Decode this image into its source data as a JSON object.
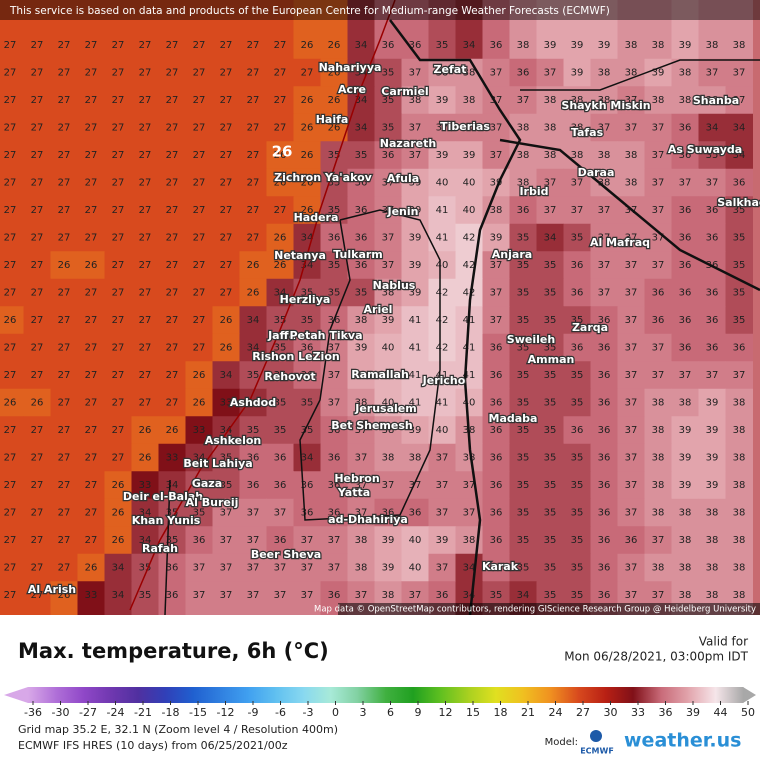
{
  "header": {
    "notice": "This service is based on data and products of the European Centre for Medium-range Weather Forecasts (ECMWF)",
    "attribution": "Map data © OpenStreetMap contributors, rendering GIScience Research Group @ Heidelberg University"
  },
  "map": {
    "highlight": "26",
    "places": [
      "Zefat",
      "Nahariyya",
      "Acre",
      "Carmiel",
      "Haifa",
      "Tiberias",
      "Nazareth",
      "Zichron Ya'akov",
      "Afula",
      "Hadera",
      "Jenin",
      "Irbid",
      "Netanya",
      "Tulkarm",
      "Nablus",
      "Herzliya",
      "Ariel",
      "Jaffa",
      "Petah Tikva",
      "Rishon LeZion",
      "Rehovot",
      "Ramallah",
      "Jericho",
      "Ashdod",
      "Jerusalem",
      "Bet Shemesh",
      "Ashkelon",
      "Beit Lahiya",
      "Gaza",
      "Deir el-Balah",
      "Al Bureij",
      "Khan Yunis",
      "Rafah",
      "Hebron",
      "Yatta",
      "ad-Dhahiriya",
      "Beer Sheva",
      "Al Arish",
      "Karak",
      "Madaba",
      "Amman",
      "Sweileh",
      "Zarqa",
      "Anjara",
      "Al Mafraq",
      "Daraa",
      "As Suwayda",
      "Shanba",
      "Tafas",
      "Shaykh Miskin",
      "Salkhad"
    ],
    "grid": [
      [
        27,
        27,
        27,
        27,
        27,
        27,
        27,
        27,
        27,
        27,
        27,
        26,
        26,
        34,
        36,
        36,
        35,
        34,
        36,
        38,
        39,
        39,
        39,
        38,
        38,
        39,
        38,
        38
      ],
      [
        27,
        27,
        27,
        27,
        27,
        27,
        27,
        27,
        27,
        27,
        27,
        27,
        26,
        34,
        35,
        37,
        38,
        38,
        37,
        36,
        37,
        39,
        38,
        38,
        39,
        38,
        37,
        37
      ],
      [
        27,
        27,
        27,
        27,
        27,
        27,
        27,
        27,
        27,
        27,
        27,
        26,
        26,
        34,
        35,
        38,
        39,
        38,
        37,
        37,
        38,
        38,
        38,
        37,
        38,
        38,
        38,
        37
      ],
      [
        27,
        27,
        27,
        27,
        27,
        27,
        27,
        27,
        27,
        27,
        27,
        26,
        26,
        34,
        35,
        37,
        37,
        37,
        37,
        38,
        38,
        38,
        37,
        37,
        37,
        36,
        34,
        34
      ],
      [
        27,
        27,
        27,
        27,
        27,
        27,
        27,
        27,
        27,
        27,
        26,
        26,
        35,
        35,
        36,
        37,
        39,
        39,
        37,
        38,
        38,
        38,
        38,
        38,
        37,
        36,
        35,
        34
      ],
      [
        27,
        27,
        27,
        27,
        27,
        27,
        27,
        27,
        27,
        27,
        26,
        26,
        35,
        36,
        37,
        39,
        40,
        40,
        39,
        38,
        37,
        37,
        38,
        38,
        37,
        37,
        37,
        36
      ],
      [
        27,
        27,
        27,
        27,
        27,
        27,
        27,
        27,
        27,
        27,
        27,
        26,
        35,
        36,
        37,
        39,
        41,
        40,
        38,
        36,
        37,
        37,
        37,
        37,
        37,
        36,
        36,
        35
      ],
      [
        27,
        27,
        27,
        27,
        27,
        27,
        27,
        27,
        27,
        27,
        26,
        34,
        36,
        36,
        37,
        39,
        41,
        42,
        39,
        35,
        34,
        35,
        37,
        37,
        37,
        36,
        36,
        35
      ],
      [
        27,
        27,
        26,
        26,
        27,
        27,
        27,
        27,
        27,
        26,
        26,
        34,
        35,
        36,
        37,
        39,
        40,
        42,
        37,
        35,
        35,
        36,
        37,
        37,
        37,
        36,
        36,
        35
      ],
      [
        27,
        27,
        27,
        27,
        27,
        27,
        27,
        27,
        27,
        26,
        34,
        35,
        35,
        35,
        38,
        39,
        42,
        42,
        37,
        35,
        35,
        36,
        37,
        37,
        36,
        36,
        36,
        35
      ],
      [
        26,
        27,
        27,
        27,
        27,
        27,
        27,
        27,
        26,
        34,
        35,
        35,
        36,
        38,
        39,
        41,
        42,
        41,
        37,
        35,
        35,
        35,
        36,
        37,
        36,
        36,
        36,
        35
      ],
      [
        27,
        27,
        27,
        27,
        27,
        27,
        27,
        27,
        26,
        34,
        35,
        36,
        37,
        39,
        40,
        41,
        42,
        41,
        36,
        35,
        35,
        36,
        36,
        37,
        37,
        36,
        36,
        36
      ],
      [
        27,
        27,
        27,
        27,
        27,
        27,
        27,
        26,
        34,
        35,
        35,
        36,
        37,
        39,
        40,
        41,
        41,
        41,
        36,
        35,
        35,
        35,
        36,
        37,
        37,
        37,
        37,
        37
      ],
      [
        26,
        26,
        27,
        27,
        27,
        27,
        27,
        26,
        33,
        34,
        35,
        35,
        37,
        38,
        40,
        41,
        41,
        40,
        36,
        35,
        35,
        35,
        36,
        37,
        38,
        38,
        39,
        38
      ],
      [
        27,
        27,
        27,
        27,
        27,
        26,
        26,
        33,
        34,
        35,
        35,
        35,
        36,
        37,
        38,
        39,
        40,
        38,
        36,
        35,
        35,
        36,
        36,
        37,
        38,
        39,
        39,
        38
      ],
      [
        27,
        27,
        27,
        27,
        27,
        26,
        33,
        34,
        35,
        36,
        36,
        34,
        36,
        37,
        38,
        38,
        37,
        38,
        36,
        35,
        35,
        35,
        36,
        37,
        38,
        39,
        39,
        38
      ],
      [
        27,
        27,
        27,
        27,
        26,
        33,
        34,
        35,
        35,
        36,
        36,
        36,
        36,
        37,
        37,
        37,
        37,
        37,
        36,
        35,
        35,
        35,
        36,
        37,
        38,
        39,
        39,
        38
      ],
      [
        27,
        27,
        27,
        27,
        26,
        34,
        35,
        35,
        37,
        37,
        37,
        36,
        36,
        37,
        36,
        36,
        37,
        37,
        36,
        35,
        35,
        35,
        36,
        37,
        38,
        38,
        38,
        38
      ],
      [
        27,
        27,
        27,
        27,
        26,
        34,
        35,
        36,
        37,
        37,
        36,
        37,
        37,
        38,
        39,
        40,
        39,
        38,
        36,
        35,
        35,
        35,
        36,
        36,
        37,
        38,
        38,
        38
      ],
      [
        27,
        27,
        27,
        26,
        34,
        35,
        36,
        37,
        37,
        37,
        37,
        37,
        37,
        38,
        39,
        40,
        37,
        34,
        36,
        35,
        35,
        35,
        36,
        37,
        38,
        38,
        38,
        38
      ],
      [
        27,
        27,
        26,
        33,
        34,
        35,
        36,
        37,
        37,
        37,
        37,
        37,
        36,
        37,
        38,
        37,
        36,
        34,
        35,
        34,
        35,
        35,
        36,
        37,
        37,
        38,
        38,
        38
      ]
    ]
  },
  "legend": {
    "title": "Max. temperature, 6h (°C)",
    "valid_label": "Valid for",
    "valid_time": "Mon 06/28/2021, 03:00pm IDT",
    "ticks": [
      -36,
      -30,
      -27,
      -24,
      -21,
      -18,
      -15,
      -12,
      -9,
      -6,
      -3,
      0,
      3,
      6,
      9,
      12,
      15,
      18,
      21,
      24,
      27,
      30,
      33,
      36,
      39,
      44,
      50
    ]
  },
  "footer": {
    "grid_info": "Grid map 35.2 E, 32.1 N (Zoom level 4 / Resolution 400m)",
    "model_run": "ECMWF IFS HRES (10 days) from 06/25/2021/00z",
    "model_label": "Model:",
    "model_logo": "ECMWF",
    "brand": "weather.us"
  }
}
